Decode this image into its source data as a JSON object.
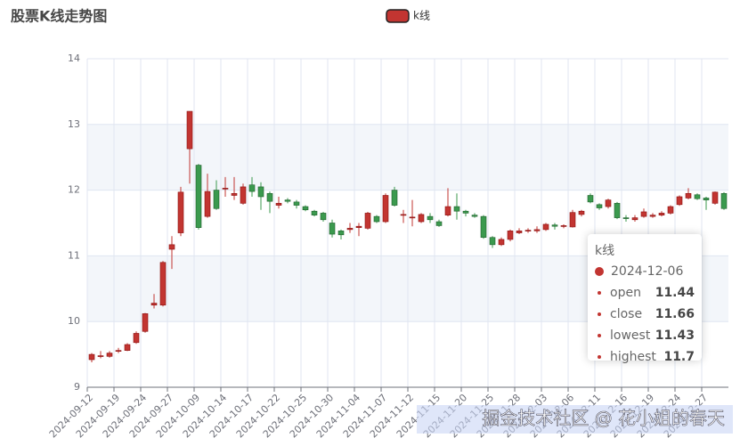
{
  "chart_data": {
    "type": "candlestick",
    "title": "股票K线走势图",
    "series": [
      {
        "name": "k线",
        "up_color": "#c23531",
        "down_color": "#3b9a4e",
        "values": [
          [
            9.42,
            9.5,
            9.38,
            9.52
          ],
          [
            9.47,
            9.48,
            9.44,
            9.55
          ],
          [
            9.47,
            9.52,
            9.45,
            9.55
          ],
          [
            9.55,
            9.56,
            9.52,
            9.6
          ],
          [
            9.56,
            9.65,
            9.55,
            9.67
          ],
          [
            9.68,
            9.82,
            9.66,
            9.85
          ],
          [
            9.85,
            10.12,
            9.83,
            10.13
          ],
          [
            10.25,
            10.28,
            10.2,
            10.42
          ],
          [
            10.25,
            10.9,
            10.23,
            10.92
          ],
          [
            11.1,
            11.17,
            10.8,
            11.3
          ],
          [
            11.35,
            11.97,
            11.3,
            12.05
          ],
          [
            12.63,
            13.2,
            12.1,
            13.2
          ],
          [
            12.38,
            11.43,
            11.4,
            12.4
          ],
          [
            11.6,
            11.98,
            11.58,
            12.25
          ],
          [
            12.0,
            11.72,
            11.7,
            12.15
          ],
          [
            12.02,
            12.03,
            11.9,
            12.2
          ],
          [
            11.92,
            11.95,
            11.85,
            12.2
          ],
          [
            11.8,
            12.05,
            11.78,
            12.1
          ],
          [
            12.08,
            11.98,
            11.9,
            12.2
          ],
          [
            12.05,
            11.9,
            11.7,
            12.12
          ],
          [
            11.95,
            11.83,
            11.65,
            11.98
          ],
          [
            11.77,
            11.8,
            11.72,
            11.9
          ],
          [
            11.85,
            11.83,
            11.8,
            11.88
          ],
          [
            11.82,
            11.77,
            11.72,
            11.85
          ],
          [
            11.75,
            11.7,
            11.68,
            11.77
          ],
          [
            11.68,
            11.62,
            11.6,
            11.7
          ],
          [
            11.65,
            11.55,
            11.52,
            11.67
          ],
          [
            11.5,
            11.33,
            11.28,
            11.55
          ],
          [
            11.38,
            11.32,
            11.25,
            11.4
          ],
          [
            11.4,
            11.42,
            11.35,
            11.5
          ],
          [
            11.43,
            11.45,
            11.3,
            11.5
          ],
          [
            11.42,
            11.65,
            11.4,
            11.67
          ],
          [
            11.6,
            11.52,
            11.5,
            11.62
          ],
          [
            11.52,
            11.92,
            11.5,
            11.95
          ],
          [
            12.0,
            11.77,
            11.75,
            12.05
          ],
          [
            11.62,
            11.63,
            11.5,
            11.7
          ],
          [
            11.58,
            11.59,
            11.45,
            11.85
          ],
          [
            11.52,
            11.63,
            11.5,
            11.65
          ],
          [
            11.6,
            11.55,
            11.5,
            11.65
          ],
          [
            11.52,
            11.46,
            11.44,
            11.55
          ],
          [
            11.62,
            11.75,
            11.6,
            12.03
          ],
          [
            11.75,
            11.68,
            11.55,
            11.95
          ],
          [
            11.68,
            11.65,
            11.6,
            11.7
          ],
          [
            11.62,
            11.6,
            11.58,
            11.65
          ],
          [
            11.6,
            11.28,
            11.26,
            11.62
          ],
          [
            11.28,
            11.17,
            11.12,
            11.3
          ],
          [
            11.17,
            11.25,
            11.15,
            11.28
          ],
          [
            11.25,
            11.38,
            11.22,
            11.4
          ],
          [
            11.35,
            11.38,
            11.33,
            11.42
          ],
          [
            11.38,
            11.39,
            11.35,
            11.42
          ],
          [
            11.38,
            11.4,
            11.35,
            11.45
          ],
          [
            11.4,
            11.48,
            11.38,
            11.5
          ],
          [
            11.47,
            11.45,
            11.4,
            11.5
          ],
          [
            11.45,
            11.46,
            11.42,
            11.48
          ],
          [
            11.44,
            11.66,
            11.43,
            11.7
          ],
          [
            11.63,
            11.68,
            11.6,
            11.7
          ],
          [
            11.92,
            11.82,
            11.8,
            11.95
          ],
          [
            11.78,
            11.73,
            11.7,
            11.8
          ],
          [
            11.75,
            11.85,
            11.72,
            11.87
          ],
          [
            11.8,
            11.58,
            11.56,
            11.82
          ],
          [
            11.58,
            11.57,
            11.52,
            11.62
          ],
          [
            11.55,
            11.58,
            11.52,
            11.62
          ],
          [
            11.6,
            11.67,
            11.58,
            11.72
          ],
          [
            11.6,
            11.62,
            11.58,
            11.65
          ],
          [
            11.62,
            11.65,
            11.6,
            11.68
          ],
          [
            11.65,
            11.75,
            11.63,
            11.77
          ],
          [
            11.78,
            11.9,
            11.76,
            11.92
          ],
          [
            11.88,
            11.95,
            11.86,
            12.03
          ],
          [
            11.93,
            11.87,
            11.85,
            11.95
          ],
          [
            11.88,
            11.85,
            11.7,
            11.9
          ],
          [
            11.8,
            11.97,
            11.78,
            11.98
          ],
          [
            11.95,
            11.72,
            11.7,
            11.97
          ]
        ]
      }
    ],
    "categories": [
      "2024-09-12",
      null,
      null,
      "2024-09-19",
      null,
      null,
      "2024-09-24",
      null,
      null,
      "2024-09-27",
      null,
      null,
      "2024-10-09",
      null,
      null,
      "2024-10-14",
      null,
      null,
      "2024-10-17",
      null,
      null,
      "2024-10-22",
      null,
      null,
      "2024-10-25",
      null,
      null,
      "2024-10-30",
      null,
      null,
      "2024-11-04",
      null,
      null,
      "2024-11-07",
      null,
      null,
      "2024-11-12",
      null,
      null,
      "2024-11-15",
      null,
      null,
      "2024-11-20",
      null,
      null,
      "2024-11-25",
      null,
      null,
      "2024-11-28",
      null,
      null,
      "2024-12-03",
      null,
      null,
      "2024-12-06",
      null,
      null,
      "2024-12-11",
      null,
      null,
      "2024-12-16",
      null,
      null,
      "2024-12-19",
      null,
      null,
      "2024-12-24",
      null,
      null,
      "2024-12-27",
      null,
      null
    ],
    "ylim": [
      9,
      14
    ],
    "yticks": [
      9,
      10,
      11,
      12,
      13,
      14
    ],
    "grid": true,
    "legend": "top",
    "tooltip": {
      "index": 54,
      "fields": [
        "open",
        "close",
        "lowest",
        "highest"
      ]
    },
    "watermark": "掘金技术社区 @ 花小姐的春天"
  }
}
